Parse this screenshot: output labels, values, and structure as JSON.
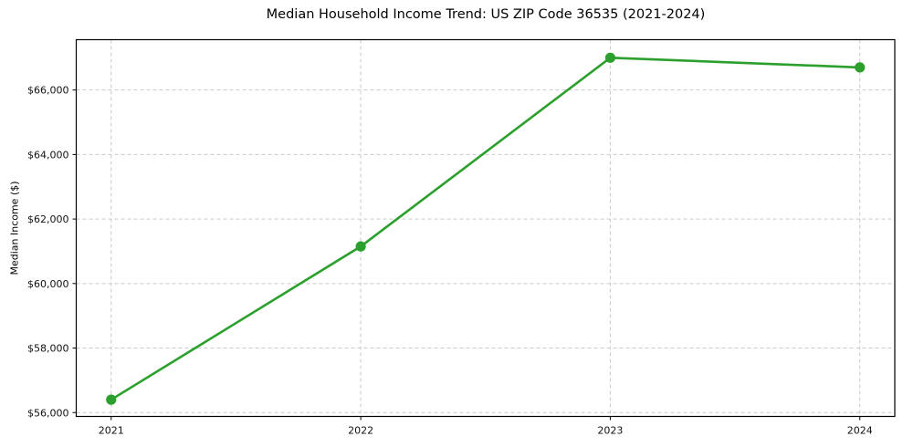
{
  "chart_data": {
    "type": "line",
    "title": "Median Household Income Trend: US ZIP Code 36535 (2021-2024)",
    "xlabel": "",
    "ylabel": "Median Income ($)",
    "x": [
      2021,
      2022,
      2023,
      2024
    ],
    "xtick_labels": [
      "2021",
      "2022",
      "2023",
      "2024"
    ],
    "y": [
      56400,
      61150,
      67000,
      66700
    ],
    "yticks": [
      56000,
      58000,
      60000,
      62000,
      64000,
      66000
    ],
    "ytick_labels": [
      "$56,000",
      "$58,000",
      "$60,000",
      "$62,000",
      "$64,000",
      "$66,000"
    ],
    "xlim": [
      2020.86,
      2024.14
    ],
    "ylim": [
      55880,
      67560
    ],
    "grid": true,
    "grid_style": "dashed",
    "legend": "none",
    "line_color": "#2ca02c",
    "grid_color": "#c9c9c9",
    "marker": "circle",
    "marker_radius": 5.6
  }
}
